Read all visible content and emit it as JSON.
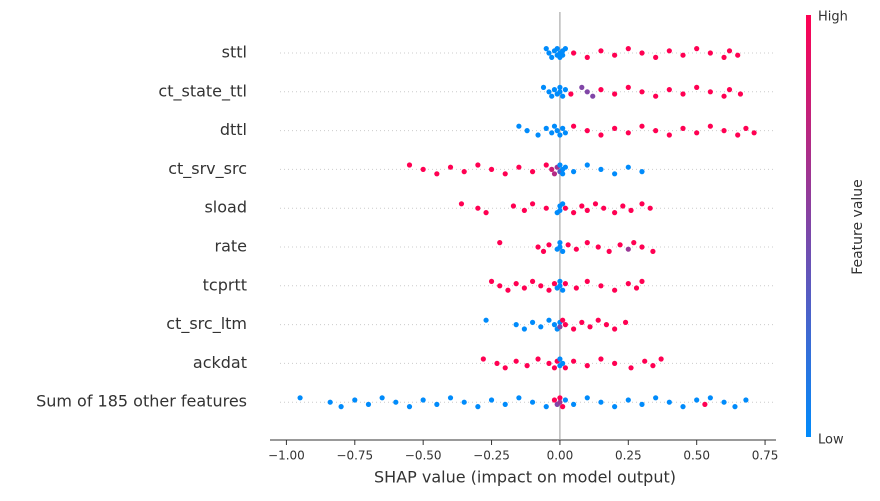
{
  "chart_data": {
    "type": "beeswarm",
    "xlabel": "SHAP value (impact on model output)",
    "colorbar_label": "Feature value",
    "colorbar_high": "High",
    "colorbar_low": "Low",
    "cmap": [
      "#008bfb",
      "#ff0052"
    ],
    "xlim": [
      -1.06,
      0.79
    ],
    "xticks": [
      {
        "value": -1,
        "label": "−1.00"
      },
      {
        "value": -0.75,
        "label": "−0.75"
      },
      {
        "value": -0.5,
        "label": "−0.50"
      },
      {
        "value": -0.25,
        "label": "−0.25"
      },
      {
        "value": 0,
        "label": "0.00"
      },
      {
        "value": 0.25,
        "label": "0.25"
      },
      {
        "value": 0.5,
        "label": "0.50"
      },
      {
        "value": 0.75,
        "label": "0.75"
      }
    ],
    "features": [
      {
        "name": "sttl",
        "shap": [
          -0.05,
          -0.04,
          -0.03,
          -0.02,
          -0.01,
          -0.01,
          0,
          0,
          0.01,
          0.01,
          0.02,
          0.05,
          0.1,
          0.15,
          0.2,
          0.25,
          0.3,
          0.35,
          0.4,
          0.45,
          0.5,
          0.55,
          0.6,
          0.62,
          0.65
        ],
        "feature_value": [
          0,
          0,
          0,
          0,
          0,
          0,
          0,
          0,
          0,
          0,
          0,
          1,
          1,
          1,
          1,
          1,
          1,
          1,
          1,
          1,
          1,
          1,
          1,
          1,
          1
        ]
      },
      {
        "name": "ct_state_ttl",
        "shap": [
          -0.06,
          -0.04,
          -0.03,
          -0.02,
          -0.01,
          0,
          0,
          0.01,
          0.02,
          0.04,
          0.08,
          0.1,
          0.12,
          0.15,
          0.2,
          0.25,
          0.3,
          0.35,
          0.4,
          0.45,
          0.5,
          0.55,
          0.6,
          0.62,
          0.66
        ],
        "feature_value": [
          0,
          0,
          0,
          0,
          0,
          0,
          0,
          0,
          0,
          1,
          0.5,
          0.5,
          0.5,
          1,
          1,
          1,
          1,
          1,
          1,
          1,
          1,
          1,
          1,
          1,
          1
        ]
      },
      {
        "name": "dttl",
        "shap": [
          -0.15,
          -0.12,
          -0.08,
          -0.05,
          -0.03,
          -0.02,
          -0.01,
          0,
          0.01,
          0.02,
          0.05,
          0.1,
          0.15,
          0.2,
          0.25,
          0.3,
          0.35,
          0.4,
          0.45,
          0.5,
          0.55,
          0.6,
          0.65,
          0.68,
          0.71
        ],
        "feature_value": [
          0,
          0,
          0,
          0,
          0,
          0,
          0,
          0,
          0,
          0,
          1,
          1,
          1,
          1,
          1,
          1,
          1,
          1,
          1,
          1,
          1,
          1,
          1,
          1,
          1
        ]
      },
      {
        "name": "ct_srv_src",
        "shap": [
          -0.55,
          -0.5,
          -0.45,
          -0.4,
          -0.35,
          -0.3,
          -0.25,
          -0.2,
          -0.15,
          -0.1,
          -0.05,
          -0.03,
          -0.02,
          -0.01,
          0,
          0,
          0.01,
          0.01,
          0.02,
          0.05,
          0.1,
          0.15,
          0.2,
          0.25,
          0.3
        ],
        "feature_value": [
          1,
          1,
          1,
          1,
          1,
          1,
          1,
          1,
          1,
          1,
          1,
          0.8,
          0.7,
          0.6,
          0.3,
          0,
          0,
          0,
          0,
          0,
          0,
          0,
          0,
          0,
          0
        ]
      },
      {
        "name": "sload",
        "shap": [
          -0.36,
          -0.3,
          -0.27,
          -0.17,
          -0.13,
          -0.1,
          -0.05,
          -0.01,
          0,
          0,
          0.01,
          0.02,
          0.05,
          0.08,
          0.1,
          0.13,
          0.16,
          0.2,
          0.23,
          0.26,
          0.3,
          0.33
        ],
        "feature_value": [
          1,
          1,
          1,
          1,
          1,
          1,
          1,
          0,
          0,
          0,
          0,
          1,
          1,
          1,
          1,
          1,
          1,
          1,
          1,
          1,
          1,
          1
        ]
      },
      {
        "name": "rate",
        "shap": [
          -0.22,
          -0.08,
          -0.06,
          -0.04,
          -0.01,
          0,
          0,
          0.01,
          0.03,
          0.06,
          0.1,
          0.14,
          0.18,
          0.22,
          0.25,
          0.27,
          0.3,
          0.34
        ],
        "feature_value": [
          1,
          1,
          1,
          1,
          0,
          0,
          0,
          0,
          1,
          1,
          1,
          1,
          1,
          1,
          0.6,
          1,
          1,
          1
        ]
      },
      {
        "name": "tcprtt",
        "shap": [
          -0.25,
          -0.22,
          -0.19,
          -0.16,
          -0.13,
          -0.1,
          -0.07,
          -0.04,
          -0.02,
          -0.01,
          0,
          0,
          0.01,
          0.02,
          0.06,
          0.1,
          0.15,
          0.2,
          0.25,
          0.28,
          0.3
        ],
        "feature_value": [
          1,
          1,
          1,
          1,
          1,
          1,
          1,
          1,
          1,
          0,
          0,
          0,
          0,
          1,
          1,
          1,
          1,
          1,
          1,
          1,
          1
        ]
      },
      {
        "name": "ct_src_ltm",
        "shap": [
          -0.27,
          -0.16,
          -0.13,
          -0.1,
          -0.07,
          -0.04,
          -0.02,
          -0.01,
          0,
          0,
          0.01,
          0.02,
          0.05,
          0.08,
          0.11,
          0.14,
          0.17,
          0.2,
          0.24
        ],
        "feature_value": [
          0,
          0,
          0,
          0,
          0,
          0,
          0,
          0,
          0,
          0.5,
          1,
          1,
          1,
          1,
          1,
          1,
          1,
          1,
          1
        ]
      },
      {
        "name": "ackdat",
        "shap": [
          -0.28,
          -0.23,
          -0.2,
          -0.16,
          -0.12,
          -0.08,
          -0.04,
          -0.02,
          -0.01,
          0,
          0,
          0.01,
          0.02,
          0.05,
          0.1,
          0.15,
          0.2,
          0.26,
          0.31,
          0.34,
          0.37
        ],
        "feature_value": [
          1,
          1,
          1,
          1,
          1,
          1,
          1,
          1,
          1,
          0,
          0,
          0,
          1,
          1,
          1,
          1,
          1,
          1,
          1,
          1,
          1
        ]
      },
      {
        "name": "Sum of 185 other features",
        "shap": [
          -0.95,
          -0.84,
          -0.8,
          -0.75,
          -0.7,
          -0.65,
          -0.6,
          -0.55,
          -0.5,
          -0.45,
          -0.4,
          -0.35,
          -0.3,
          -0.25,
          -0.2,
          -0.15,
          -0.1,
          -0.05,
          -0.02,
          -0.01,
          0,
          0,
          0.01,
          0.02,
          0.05,
          0.1,
          0.15,
          0.2,
          0.25,
          0.3,
          0.35,
          0.4,
          0.45,
          0.5,
          0.53,
          0.55,
          0.6,
          0.64,
          0.68
        ],
        "feature_value": [
          0,
          0,
          0,
          0,
          0,
          0,
          0,
          0,
          0,
          0,
          0,
          0,
          0,
          0,
          0,
          0,
          0,
          0,
          1,
          0.5,
          1,
          0.6,
          1,
          0,
          0,
          0,
          0,
          0,
          0,
          0,
          0,
          0,
          0,
          0,
          1,
          0,
          0,
          0,
          0
        ]
      }
    ]
  }
}
